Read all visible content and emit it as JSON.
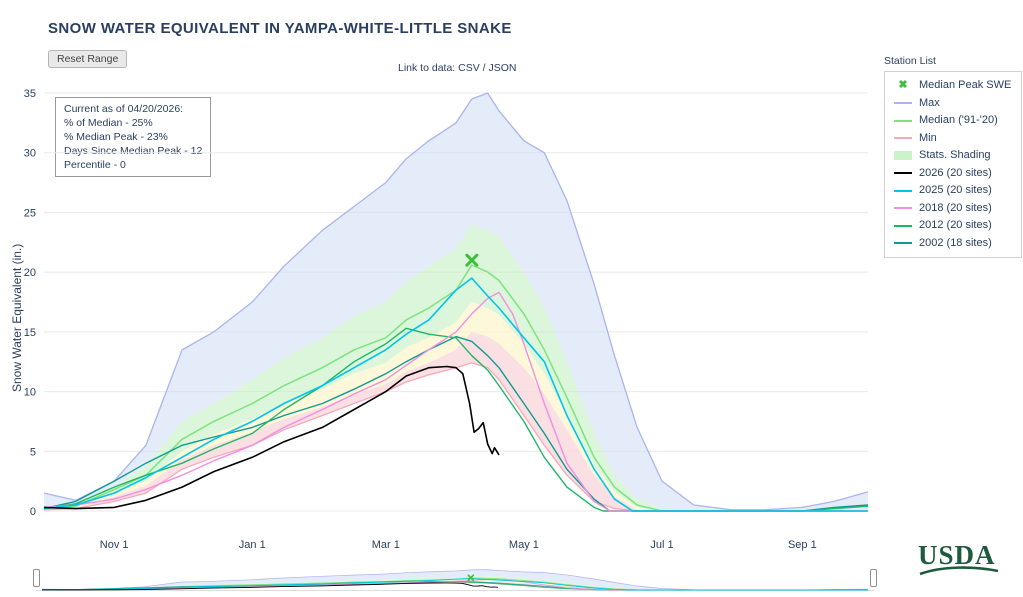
{
  "title": "SNOW WATER EQUIVALENT IN YAMPA-WHITE-LITTLE SNAKE",
  "toolbar": {
    "reset_button": "Reset Range",
    "link_prefix": "Link to data:",
    "csv_link": "CSV",
    "separator": "/",
    "json_link": "JSON"
  },
  "station_list_label": "Station List",
  "y_axis_label": "Snow Water Equivalent (in.)",
  "info_box": {
    "lines": [
      "Current as of 04/20/2026:",
      "% of Median - 25%",
      "% Median Peak - 23%",
      "Days Since Median Peak - 12",
      "Percentile - 0"
    ]
  },
  "logo": {
    "text": "USDA"
  },
  "colors": {
    "text": "#2a3f5f",
    "grid": "#e8e8e8",
    "usda_green": "#1e5b3e",
    "marker_green": "#3dbe3d"
  },
  "legend": [
    {
      "label": "Median Peak SWE",
      "type": "x-marker",
      "color": "#3dbe3d",
      "icon": "x-marker-icon"
    },
    {
      "label": "Max",
      "type": "line",
      "color": "#aab4ee",
      "icon": "max-line-swatch"
    },
    {
      "label": "Median ('91-'20)",
      "type": "line",
      "color": "#7de37d",
      "icon": "median-line-swatch"
    },
    {
      "label": "Min",
      "type": "line",
      "color": "#f6a9b8",
      "icon": "min-line-swatch"
    },
    {
      "label": "Stats. Shading",
      "type": "fill",
      "color": "#cbf3cb",
      "icon": "stats-shading-swatch"
    },
    {
      "label": "2026 (20 sites)",
      "type": "line",
      "color": "#000000",
      "icon": "line-2026-swatch"
    },
    {
      "label": "2025 (20 sites)",
      "type": "line",
      "color": "#00c5e8",
      "icon": "line-2025-swatch"
    },
    {
      "label": "2018 (20 sites)",
      "type": "line",
      "color": "#f18fe1",
      "icon": "line-2018-swatch"
    },
    {
      "label": "2012 (20 sites)",
      "type": "line",
      "color": "#21b566",
      "icon": "line-2012-swatch"
    },
    {
      "label": "2002 (18 sites)",
      "type": "line",
      "color": "#109a93",
      "icon": "line-2002-swatch"
    }
  ],
  "chart_data": {
    "type": "line",
    "title": "SNOW WATER EQUIVALENT IN YAMPA-WHITE-LITTLE SNAKE",
    "xlabel": "",
    "ylabel": "Snow Water Equivalent (in.)",
    "ylim": [
      0,
      35
    ],
    "grid": "horizontal-only",
    "legend_position": "right",
    "x_unit": "day of water year (Oct 1 = 0)",
    "days_total": 364,
    "y_ticks": [
      0,
      5,
      10,
      15,
      20,
      25,
      30,
      35
    ],
    "x_ticks": [
      {
        "day": 31,
        "label": "Nov 1"
      },
      {
        "day": 92,
        "label": "Jan 1"
      },
      {
        "day": 151,
        "label": "Mar 1"
      },
      {
        "day": 212,
        "label": "May 1"
      },
      {
        "day": 273,
        "label": "Jul 1"
      },
      {
        "day": 335,
        "label": "Sep 1"
      }
    ],
    "stat_days": [
      0,
      14,
      31,
      45,
      61,
      75,
      92,
      106,
      123,
      137,
      151,
      160,
      170,
      182,
      189,
      196,
      201,
      212,
      221,
      231,
      243,
      252,
      262,
      273,
      287,
      304,
      318,
      335,
      349,
      364
    ],
    "stats": {
      "max": [
        1.5,
        0.9,
        2.5,
        5.5,
        13.5,
        15.0,
        17.5,
        20.5,
        23.5,
        25.5,
        27.5,
        29.5,
        31.0,
        32.5,
        34.5,
        35.0,
        33.5,
        31.0,
        30.0,
        26.0,
        19.0,
        13.0,
        7.0,
        2.5,
        0.5,
        0.1,
        0.1,
        0.3,
        0.8,
        1.6
      ],
      "p70": [
        0.3,
        0.5,
        2.0,
        3.8,
        7.5,
        9.0,
        11.0,
        12.8,
        14.5,
        16.3,
        17.5,
        19.2,
        20.5,
        22.0,
        24.0,
        23.5,
        23.0,
        20.0,
        17.0,
        12.5,
        6.5,
        3.0,
        1.0,
        0.2,
        0,
        0,
        0,
        0,
        0,
        0
      ],
      "median": [
        0.2,
        0.4,
        1.8,
        3.0,
        6.0,
        7.5,
        9.0,
        10.5,
        12.0,
        13.5,
        14.5,
        16.0,
        17.0,
        18.5,
        20.6,
        20.0,
        19.3,
        16.5,
        13.5,
        9.5,
        4.5,
        2.0,
        0.5,
        0,
        0,
        0,
        0,
        0,
        0,
        0
      ],
      "p30": [
        0.15,
        0.3,
        1.5,
        2.5,
        5.0,
        6.4,
        7.7,
        9.0,
        10.2,
        11.5,
        12.4,
        13.7,
        14.5,
        15.8,
        17.5,
        17.0,
        16.4,
        14.0,
        11.5,
        8.0,
        3.8,
        1.6,
        0.3,
        0,
        0,
        0,
        0,
        0,
        0,
        0
      ],
      "p10": [
        0.1,
        0.25,
        1.2,
        2.1,
        4.3,
        5.5,
        6.6,
        7.7,
        8.7,
        9.8,
        10.6,
        11.7,
        12.4,
        13.5,
        15.0,
        14.6,
        14.0,
        12.0,
        9.8,
        6.8,
        3.0,
        1.2,
        0.1,
        0,
        0,
        0,
        0,
        0,
        0,
        0
      ],
      "min": [
        0.1,
        0.2,
        0.8,
        1.5,
        3.5,
        4.5,
        5.5,
        6.8,
        8.0,
        9.0,
        10.0,
        10.8,
        11.4,
        12.0,
        12.4,
        12.0,
        11.0,
        8.0,
        5.5,
        3.0,
        0.8,
        0.2,
        0,
        0,
        0,
        0,
        0,
        0,
        0,
        0
      ]
    },
    "bands": [
      {
        "name": "max-band",
        "color": "#cdddf6",
        "opacity": 0.55,
        "upper": "max",
        "lower": "p70"
      },
      {
        "name": "upper-shading",
        "color": "#c4f0c4",
        "opacity": 0.6,
        "upper": "p70",
        "lower": "p30"
      },
      {
        "name": "mid-shading",
        "color": "#fcf6cf",
        "opacity": 0.8,
        "upper": "p30",
        "lower": "p10"
      },
      {
        "name": "min-band",
        "color": "#f9d9de",
        "opacity": 0.85,
        "upper": "p10",
        "lower": "min"
      }
    ],
    "stat_lines": [
      {
        "name": "Max",
        "key": "max",
        "color": "#aab4ee",
        "width": 1.3
      },
      {
        "name": "Median ('91-'20)",
        "key": "median",
        "color": "#7de37d",
        "width": 1.5
      },
      {
        "name": "Min",
        "key": "min",
        "color": "#f6a9b8",
        "width": 1.3
      }
    ],
    "series": [
      {
        "name": "2002 (18 sites)",
        "color": "#109a93",
        "width": 1.4,
        "days": [
          0,
          14,
          31,
          45,
          61,
          75,
          92,
          106,
          123,
          137,
          151,
          160,
          170,
          182,
          189,
          196,
          201,
          212,
          221,
          231,
          243,
          250,
          262,
          273,
          287,
          304,
          318,
          335,
          349,
          364
        ],
        "values": [
          0.2,
          0.8,
          2.5,
          4.0,
          5.5,
          6.2,
          7.0,
          8.0,
          9.0,
          10.2,
          11.5,
          12.5,
          13.5,
          14.6,
          14.2,
          13.0,
          12.0,
          9.0,
          6.5,
          3.5,
          1.0,
          0,
          0,
          0,
          0,
          0,
          0,
          0,
          0.3,
          0.5
        ]
      },
      {
        "name": "2012 (20 sites)",
        "color": "#21b566",
        "width": 1.4,
        "days": [
          0,
          14,
          31,
          45,
          61,
          75,
          92,
          106,
          123,
          137,
          151,
          160,
          170,
          182,
          189,
          196,
          201,
          212,
          221,
          231,
          243,
          247,
          262,
          273,
          287,
          304,
          318,
          335,
          349,
          364
        ],
        "values": [
          0.2,
          0.6,
          2.0,
          3.0,
          4.0,
          5.2,
          6.5,
          8.5,
          10.5,
          12.5,
          14.0,
          15.3,
          14.8,
          14.5,
          13.0,
          11.8,
          10.5,
          7.5,
          4.5,
          2.0,
          0.3,
          0,
          0,
          0,
          0,
          0,
          0,
          0,
          0.2,
          0.4
        ]
      },
      {
        "name": "2018 (20 sites)",
        "color": "#f18fe1",
        "width": 1.4,
        "days": [
          0,
          14,
          31,
          45,
          61,
          75,
          92,
          106,
          123,
          137,
          151,
          160,
          170,
          182,
          189,
          196,
          201,
          207,
          212,
          221,
          231,
          243,
          250,
          273,
          304,
          335,
          364
        ],
        "values": [
          0.3,
          0.5,
          1.0,
          1.8,
          3.0,
          4.2,
          5.5,
          7.0,
          8.5,
          9.8,
          11.0,
          12.2,
          13.5,
          15.0,
          16.5,
          17.8,
          18.3,
          16.5,
          14.0,
          9.0,
          4.0,
          0.8,
          0,
          0,
          0,
          0,
          0
        ]
      },
      {
        "name": "2025 (20 sites)",
        "color": "#00c5e8",
        "width": 1.6,
        "days": [
          0,
          14,
          31,
          45,
          61,
          75,
          92,
          106,
          123,
          137,
          151,
          160,
          170,
          182,
          189,
          196,
          201,
          212,
          221,
          231,
          243,
          252,
          260,
          273,
          304,
          335,
          364
        ],
        "values": [
          0.2,
          0.5,
          1.5,
          2.8,
          4.5,
          6.0,
          7.5,
          9.0,
          10.5,
          12.0,
          13.5,
          14.8,
          16.0,
          18.5,
          19.5,
          18.0,
          17.0,
          14.5,
          12.5,
          8.0,
          3.5,
          1.0,
          0,
          0,
          0,
          0,
          0
        ]
      },
      {
        "name": "2026 (20 sites)",
        "color": "#000000",
        "width": 1.6,
        "days": [
          0,
          14,
          31,
          45,
          61,
          75,
          92,
          106,
          123,
          137,
          151,
          160,
          170,
          178,
          182,
          185,
          188,
          190,
          192,
          194,
          196,
          198,
          199,
          201
        ],
        "values": [
          0.3,
          0.2,
          0.3,
          0.9,
          2.0,
          3.3,
          4.5,
          5.8,
          7.0,
          8.5,
          10.0,
          11.3,
          12.0,
          12.1,
          12.0,
          11.5,
          9.0,
          6.6,
          6.9,
          7.4,
          5.6,
          4.8,
          5.3,
          4.7
        ]
      }
    ],
    "peak_marker": {
      "label": "Median Peak SWE",
      "day": 189,
      "value": 21.0,
      "color": "#3dbe3d"
    }
  }
}
